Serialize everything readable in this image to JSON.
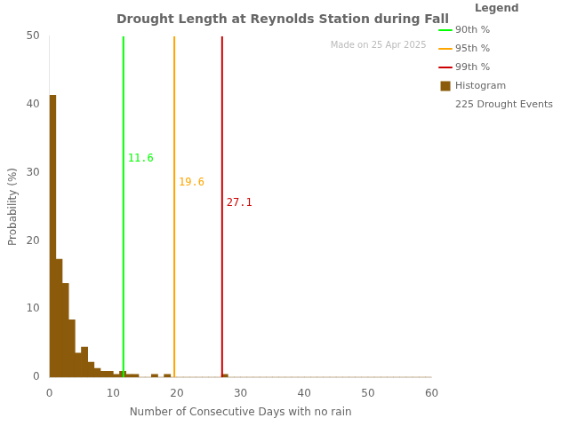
{
  "chart_data": {
    "type": "histogram",
    "title": "Drought Length at Reynolds Station during Fall",
    "x_label": "Number of Consecutive Days with no rain",
    "y_label": "Probability (%)",
    "bins": [
      0,
      1,
      2,
      3,
      4,
      5,
      6,
      7,
      8,
      9,
      10,
      11,
      12,
      13,
      14,
      15,
      16,
      17,
      18,
      19,
      20,
      21,
      22,
      23,
      24,
      25,
      26,
      27,
      28,
      29,
      30,
      31,
      32,
      33,
      34,
      35,
      36,
      37,
      38,
      39,
      40,
      41,
      42,
      43,
      44,
      45,
      46,
      47,
      48,
      49,
      50,
      51,
      52,
      53,
      54,
      55,
      56,
      57,
      58,
      59,
      60
    ],
    "series": [
      {
        "name": "Histogram",
        "color": "#8B5A0A",
        "values": [
          41.33,
          17.33,
          13.78,
          8.44,
          3.56,
          4.44,
          2.22,
          1.33,
          0.89,
          0.89,
          0.44,
          0.89,
          0.44,
          0.44,
          0.0,
          0.0,
          0.44,
          0.0,
          0.44,
          0.0,
          0.0,
          0.0,
          0.0,
          0.0,
          0.0,
          0.0,
          0.0,
          0.44,
          0.0,
          0.0,
          0.0,
          0.0,
          0.0,
          0.0,
          0.0,
          0.0,
          0.0,
          0.0,
          0.0,
          0.0,
          0.0,
          0.0,
          0.0,
          0.0,
          0.0,
          0.0,
          0.0,
          0.0,
          0.0,
          0.0,
          0.0,
          0.0,
          0.0,
          0.0,
          0.0,
          0.0,
          0.0,
          0.0,
          0.0,
          0.0
        ]
      }
    ],
    "lines": [
      {
        "name": "90th %",
        "x": 11.6,
        "color": "#00FF00"
      },
      {
        "name": "95th %",
        "x": 19.6,
        "color": "#FFA500"
      },
      {
        "name": "99th %",
        "x": 27.1,
        "color": "#CC0000"
      }
    ],
    "legend": "right",
    "legend_title": "Legend",
    "legend_notes": [
      "225 Drought Events"
    ],
    "annotations": [
      {
        "text": "Made on 25 Apr 2025",
        "color": "#bbbbbb"
      }
    ],
    "xlim": [
      0,
      60
    ],
    "ylim": [
      0,
      50
    ],
    "xticks": [
      0,
      10,
      20,
      30,
      40,
      50,
      60
    ],
    "yticks": [
      0,
      10,
      20,
      30,
      40,
      50
    ],
    "grid": false
  }
}
